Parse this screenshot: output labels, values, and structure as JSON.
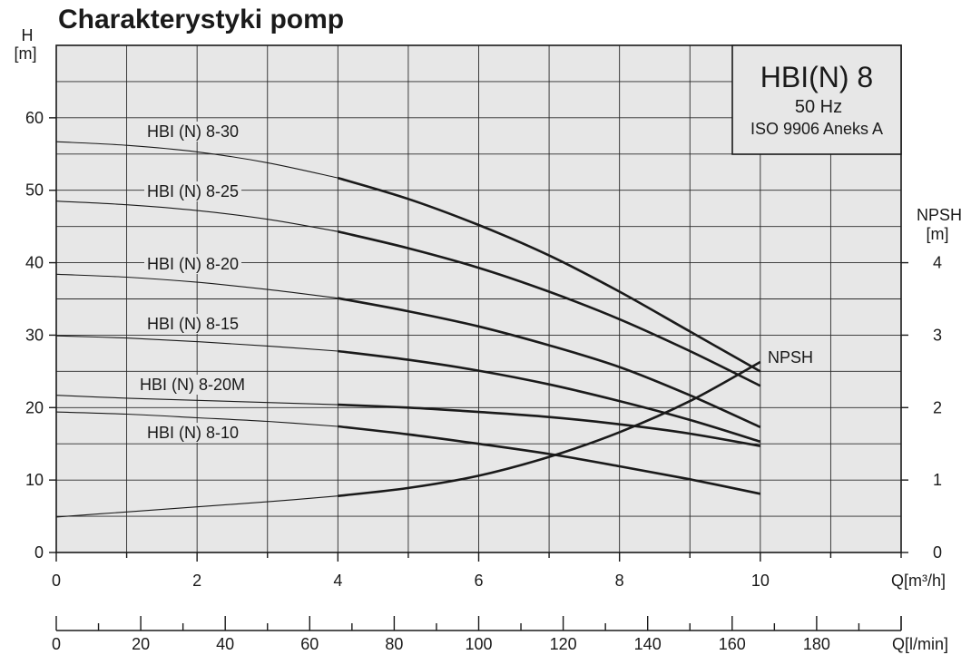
{
  "chart_data": {
    "type": "line",
    "title": "Charakterystyki pomp",
    "ylabel": "H",
    "yunit": "[m]",
    "y2label": "NPSH",
    "y2unit": "[m]",
    "xlabel": "Q[m³/h]",
    "x2label": "Q[l/min]",
    "xlim": [
      0,
      12
    ],
    "ylim": [
      0,
      70
    ],
    "y2lim": [
      0,
      7
    ],
    "x_ticks": [
      "0",
      "2",
      "4",
      "6",
      "8",
      "10"
    ],
    "x_tick_values": [
      0,
      2,
      4,
      6,
      8,
      10
    ],
    "x2_ticks": [
      "0",
      "20",
      "40",
      "60",
      "80",
      "100",
      "120",
      "140",
      "160",
      "180"
    ],
    "x2_tick_values": [
      0,
      20,
      40,
      60,
      80,
      100,
      120,
      140,
      160,
      180
    ],
    "y_ticks": [
      "0",
      "10",
      "20",
      "30",
      "40",
      "50",
      "60"
    ],
    "y_tick_values": [
      0,
      10,
      20,
      30,
      40,
      50,
      60
    ],
    "y2_ticks": [
      "0",
      "1",
      "2",
      "3",
      "4"
    ],
    "y2_tick_values": [
      0,
      1,
      2,
      3,
      4
    ],
    "grid": true,
    "info_box": {
      "model": "HBI(N) 8",
      "frequency": "50 Hz",
      "standard": "ISO 9906 Aneks  A"
    },
    "series": [
      {
        "name": "HBI (N) 8-30",
        "x": [
          0,
          1,
          2,
          3,
          4,
          5,
          6,
          7,
          8,
          9,
          10
        ],
        "y": [
          56.7,
          56.2,
          55.3,
          53.8,
          51.7,
          48.8,
          45.2,
          41.0,
          36.0,
          30.5,
          25.0
        ],
        "bold_from": 4
      },
      {
        "name": "HBI (N) 8-25",
        "x": [
          0,
          1,
          2,
          3,
          4,
          5,
          6,
          7,
          8,
          9,
          10
        ],
        "y": [
          48.5,
          48.0,
          47.2,
          46.0,
          44.3,
          42.0,
          39.3,
          36.0,
          32.2,
          27.8,
          23.0
        ],
        "bold_from": 4
      },
      {
        "name": "HBI (N) 8-20",
        "x": [
          0,
          1,
          2,
          3,
          4,
          5,
          6,
          7,
          8,
          9,
          10
        ],
        "y": [
          38.4,
          38.0,
          37.3,
          36.3,
          35.1,
          33.3,
          31.2,
          28.6,
          25.6,
          21.7,
          17.3
        ],
        "bold_from": 4
      },
      {
        "name": "HBI (N) 8-15",
        "x": [
          0,
          1,
          2,
          3,
          4,
          5,
          6,
          7,
          8,
          9,
          10
        ],
        "y": [
          29.9,
          29.6,
          29.1,
          28.5,
          27.8,
          26.6,
          25.1,
          23.2,
          20.9,
          18.3,
          15.3
        ],
        "bold_from": 4
      },
      {
        "name": "HBI (N) 8-20M",
        "x": [
          0,
          1,
          2,
          3,
          4,
          5,
          6,
          7,
          8,
          9,
          10
        ],
        "y": [
          21.7,
          21.3,
          21.0,
          20.7,
          20.4,
          20.0,
          19.4,
          18.7,
          17.7,
          16.4,
          14.7
        ],
        "bold_from": 4
      },
      {
        "name": "HBI (N) 8-10",
        "x": [
          0,
          1,
          2,
          3,
          4,
          5,
          6,
          7,
          8,
          9,
          10
        ],
        "y": [
          19.4,
          19.1,
          18.6,
          18.1,
          17.4,
          16.3,
          15.0,
          13.6,
          11.9,
          10.1,
          8.1
        ],
        "bold_from": 4
      },
      {
        "name": "NPSH",
        "axis": "y2",
        "x": [
          0,
          1,
          2,
          3,
          4,
          5,
          6,
          7,
          8,
          9,
          10
        ],
        "y": [
          0.49,
          0.56,
          0.63,
          0.7,
          0.78,
          0.89,
          1.06,
          1.32,
          1.66,
          2.09,
          2.63
        ],
        "bold_from": 4
      }
    ]
  }
}
